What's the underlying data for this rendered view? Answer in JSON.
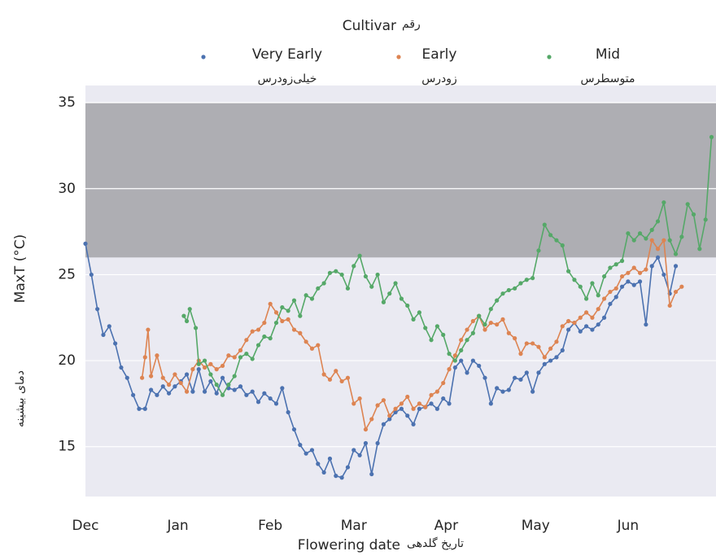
{
  "chart_data": {
    "type": "line",
    "legend_title": "Cultivar",
    "legend_title_fa": "رقم",
    "xlabel": "Flowering date",
    "xlabel_fa": "تاریخ گلدهی",
    "ylabel": "MaxT (°C)",
    "ylabel_fa": "دمای بیشینه",
    "xlim": [
      0,
      211.5
    ],
    "ylim": [
      12.1,
      36
    ],
    "xticks": [
      {
        "value": 0,
        "label": "Dec"
      },
      {
        "value": 31,
        "label": "Jan"
      },
      {
        "value": 62,
        "label": "Feb"
      },
      {
        "value": 90,
        "label": "Mar"
      },
      {
        "value": 121,
        "label": "Apr"
      },
      {
        "value": 151,
        "label": "May"
      },
      {
        "value": 182,
        "label": "Jun"
      }
    ],
    "yticks": [
      15,
      20,
      25,
      30,
      35
    ],
    "grid": true,
    "band": {
      "ymin": 26,
      "ymax": 35,
      "color": "#aeaeb3"
    },
    "series": [
      {
        "name": "Very Early",
        "name_fa": "خیلی‌زودرس",
        "color": "#4c72b0",
        "x": [
          0,
          2,
          4,
          6,
          8,
          10,
          12,
          14,
          16,
          18,
          20,
          22,
          24,
          26,
          28,
          30,
          32,
          34,
          36,
          38,
          40,
          42,
          44,
          46,
          48,
          50,
          52,
          54,
          56,
          58,
          60,
          62,
          64,
          66,
          68,
          70,
          72,
          74,
          76,
          78,
          80,
          82,
          84,
          86,
          88,
          90,
          92,
          94,
          96,
          98,
          100,
          102,
          104,
          106,
          108,
          110,
          112,
          114,
          116,
          118,
          120,
          122,
          124,
          126,
          128,
          130,
          132,
          134,
          136,
          138,
          140,
          142,
          144,
          146,
          148,
          150,
          152,
          154,
          156,
          158,
          160,
          162,
          164,
          166,
          168,
          170,
          172,
          174,
          176,
          178,
          180,
          182,
          184,
          186,
          188,
          190,
          192,
          194,
          196,
          198
        ],
        "values": [
          26.8,
          25,
          23,
          21.5,
          22,
          21,
          19.6,
          19,
          18,
          17.2,
          17.2,
          18.3,
          18,
          18.5,
          18.1,
          18.5,
          18.8,
          19.2,
          18.2,
          19.5,
          18.2,
          18.8,
          18.1,
          19,
          18.4,
          18.3,
          18.5,
          18,
          18.2,
          17.6,
          18.1,
          17.8,
          17.5,
          18.4,
          17,
          16,
          15.1,
          14.6,
          14.8,
          14,
          13.5,
          14.3,
          13.3,
          13.2,
          13.8,
          14.8,
          14.5,
          15.2,
          13.4,
          15.2,
          16.3,
          16.6,
          17,
          17.2,
          16.8,
          16.3,
          17.2,
          17.3,
          17.5,
          17.2,
          17.8,
          17.5,
          19.6,
          20,
          19.3,
          20,
          19.7,
          19,
          17.5,
          18.4,
          18.2,
          18.3,
          19,
          18.9,
          19.3,
          18.2,
          19.3,
          19.8,
          20,
          20.2,
          20.6,
          21.8,
          22.2,
          21.7,
          22,
          21.8,
          22.1,
          22.5,
          23.3,
          23.7,
          24.3,
          24.6,
          24.4,
          24.6,
          22.1,
          25.5,
          26,
          25,
          23.9,
          25.5
        ]
      },
      {
        "name": "Early",
        "name_fa": "زودرس",
        "color": "#dd8452",
        "x": [
          19,
          20,
          21,
          22,
          24,
          26,
          28,
          30,
          32,
          34,
          36,
          38,
          40,
          42,
          44,
          46,
          48,
          50,
          52,
          54,
          56,
          58,
          60,
          62,
          64,
          66,
          68,
          70,
          72,
          74,
          76,
          78,
          80,
          82,
          84,
          86,
          88,
          90,
          92,
          94,
          96,
          98,
          100,
          102,
          104,
          106,
          108,
          110,
          112,
          114,
          116,
          118,
          120,
          122,
          124,
          126,
          128,
          130,
          132,
          134,
          136,
          138,
          140,
          142,
          144,
          146,
          148,
          150,
          152,
          154,
          156,
          158,
          160,
          162,
          164,
          166,
          168,
          170,
          172,
          174,
          176,
          178,
          180,
          182,
          184,
          186,
          188,
          190,
          192,
          194,
          196,
          198,
          200
        ],
        "values": [
          19,
          20.2,
          21.8,
          19.1,
          20.3,
          19,
          18.6,
          19.2,
          18.7,
          18.2,
          19.5,
          20,
          19.6,
          19.8,
          19.5,
          19.7,
          20.3,
          20.2,
          20.6,
          21.2,
          21.7,
          21.8,
          22.2,
          23.3,
          22.8,
          22.3,
          22.4,
          21.8,
          21.6,
          21.1,
          20.7,
          20.9,
          19.2,
          18.9,
          19.4,
          18.8,
          19,
          17.5,
          17.8,
          16,
          16.6,
          17.4,
          17.7,
          16.8,
          17.2,
          17.5,
          17.9,
          17.2,
          17.5,
          17.3,
          18,
          18.2,
          18.7,
          19.5,
          20.3,
          21.2,
          21.8,
          22.3,
          22.6,
          21.8,
          22.2,
          22.1,
          22.4,
          21.6,
          21.3,
          20.4,
          21,
          21,
          20.8,
          20.2,
          20.7,
          21.1,
          22,
          22.3,
          22.2,
          22.5,
          22.8,
          22.5,
          23,
          23.6,
          24,
          24.2,
          24.9,
          25.1,
          25.4,
          25.1,
          25.3,
          27,
          26.5,
          27,
          23.2,
          24,
          24.3
        ]
      },
      {
        "name": "Mid",
        "name_fa": "متوسطرس",
        "color": "#55a868",
        "x": [
          33,
          34,
          35,
          37,
          38,
          40,
          42,
          44,
          46,
          48,
          50,
          52,
          54,
          56,
          58,
          60,
          62,
          64,
          66,
          68,
          70,
          72,
          74,
          76,
          78,
          80,
          82,
          84,
          86,
          88,
          90,
          92,
          94,
          96,
          98,
          100,
          102,
          104,
          106,
          108,
          110,
          112,
          114,
          116,
          118,
          120,
          122,
          124,
          126,
          128,
          130,
          132,
          134,
          136,
          138,
          140,
          142,
          144,
          146,
          148,
          150,
          152,
          154,
          156,
          158,
          160,
          162,
          164,
          166,
          168,
          170,
          172,
          174,
          176,
          178,
          180,
          182,
          184,
          186,
          188,
          190,
          192,
          194,
          196,
          198,
          200,
          202,
          204,
          206,
          208,
          210
        ],
        "values": [
          22.6,
          22.3,
          23,
          21.9,
          19.8,
          20,
          19.2,
          18.6,
          18,
          18.6,
          19.1,
          20.2,
          20.4,
          20.1,
          20.9,
          21.4,
          21.3,
          22.2,
          23.1,
          22.9,
          23.5,
          22.6,
          23.8,
          23.6,
          24.2,
          24.5,
          25.1,
          25.2,
          25,
          24.2,
          25.5,
          26.1,
          24.9,
          24.3,
          25,
          23.4,
          23.9,
          24.5,
          23.6,
          23.2,
          22.4,
          22.8,
          21.9,
          21.2,
          22,
          21.5,
          20.4,
          20,
          20.6,
          21.2,
          21.6,
          22.6,
          22.1,
          23,
          23.5,
          23.9,
          24.1,
          24.2,
          24.5,
          24.7,
          24.8,
          26.4,
          27.9,
          27.3,
          27,
          26.7,
          25.2,
          24.7,
          24.3,
          23.6,
          24.5,
          23.8,
          24.9,
          25.4,
          25.6,
          25.8,
          27.4,
          27,
          27.4,
          27.1,
          27.6,
          28.1,
          29.2,
          27,
          26.2,
          27.2,
          29.1,
          28.5,
          26.5,
          28.2,
          33
        ]
      }
    ]
  }
}
